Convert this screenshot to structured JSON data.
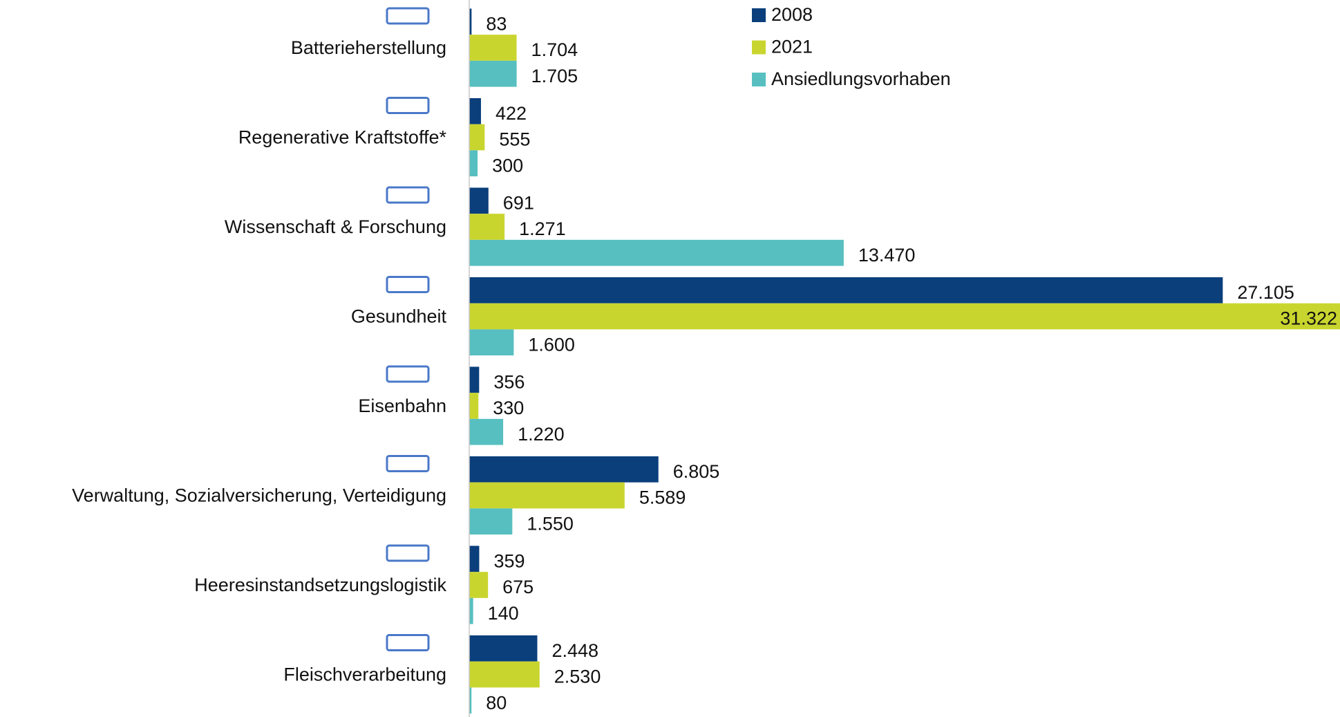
{
  "chart_data": {
    "type": "bar",
    "orientation": "horizontal",
    "categories": [
      "Batterieherstellung",
      "Regenerative Kraftstoffe*",
      "Wissenschaft & Forschung",
      "Gesundheit",
      "Eisenbahn",
      "Verwaltung, Sozialversicherung, Verteidigung",
      "Heeresinstandsetzungslogistik",
      "Fleischverarbeitung"
    ],
    "series": [
      {
        "name": "2008",
        "color": "#0a3f7c",
        "values": [
          83,
          422,
          691,
          27105,
          356,
          6805,
          359,
          2448
        ],
        "value_labels": [
          "83",
          "422",
          "691",
          "27.105",
          "356",
          "6.805",
          "359",
          "2.448"
        ]
      },
      {
        "name": "2021",
        "color": "#c9d52f",
        "values": [
          1704,
          555,
          1271,
          31322,
          330,
          5589,
          675,
          2530
        ],
        "value_labels": [
          "1.704",
          "555",
          "1.271",
          "31.322",
          "330",
          "5.589",
          "675",
          "2.530"
        ]
      },
      {
        "name": "Ansiedlungsvorhaben",
        "color": "#57bfc0",
        "values": [
          1705,
          300,
          13470,
          1600,
          1220,
          1550,
          140,
          80
        ],
        "value_labels": [
          "1.705",
          "300",
          "13.470",
          "1.600",
          "1.220",
          "1.550",
          "140",
          "80"
        ]
      }
    ],
    "xlim": [
      0,
      31322
    ],
    "legend": "top-right"
  }
}
